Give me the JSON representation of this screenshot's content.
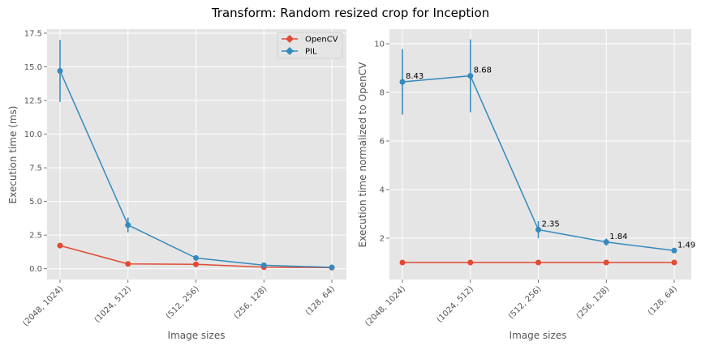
{
  "title": "Transform: Random resized crop for Inception",
  "colors": {
    "opencv": "#E24A33",
    "pil": "#348ABD",
    "axes_bg": "#E5E5E5",
    "grid": "#FFFFFF",
    "tick_text": "#555555"
  },
  "chart_data": [
    {
      "type": "line",
      "xlabel": "Image sizes",
      "ylabel": "Execution time (ms)",
      "categories": [
        "(2048, 1024)",
        "(1024, 512)",
        "(512, 256)",
        "(256, 128)",
        "(128, 64)"
      ],
      "ylim": [
        -0.8,
        17.8
      ],
      "yticks": [
        0.0,
        2.5,
        5.0,
        7.5,
        10.0,
        12.5,
        15.0,
        17.5
      ],
      "ytick_labels": [
        "0.0",
        "2.5",
        "5.0",
        "7.5",
        "10.0",
        "12.5",
        "15.0",
        "17.5"
      ],
      "grid": true,
      "legend": "top-right",
      "series": [
        {
          "name": "OpenCV",
          "color": "#E24A33",
          "values": [
            1.72,
            0.36,
            0.33,
            0.12,
            0.08
          ],
          "errors": [
            0.05,
            0.04,
            0.03,
            0.02,
            0.01
          ]
        },
        {
          "name": "PIL",
          "color": "#348ABD",
          "values": [
            14.7,
            3.25,
            0.8,
            0.26,
            0.1
          ],
          "errors": [
            2.3,
            0.55,
            0.08,
            0.03,
            0.02
          ]
        }
      ]
    },
    {
      "type": "line",
      "xlabel": "Image sizes",
      "ylabel": "Execution time normalized to OpenCV",
      "categories": [
        "(2048, 1024)",
        "(1024, 512)",
        "(512, 256)",
        "(256, 128)",
        "(128, 64)"
      ],
      "ylim": [
        0.3,
        10.6
      ],
      "yticks": [
        2,
        4,
        6,
        8,
        10
      ],
      "ytick_labels": [
        "2",
        "4",
        "6",
        "8",
        "10"
      ],
      "grid": true,
      "series": [
        {
          "name": "OpenCV",
          "color": "#E24A33",
          "values": [
            1.0,
            1.0,
            1.0,
            1.0,
            1.0
          ],
          "errors": [
            0.02,
            0.12,
            0.02,
            0.02,
            0.02
          ]
        },
        {
          "name": "PIL",
          "color": "#348ABD",
          "values": [
            8.43,
            8.68,
            2.35,
            1.84,
            1.49
          ],
          "errors": [
            1.35,
            1.5,
            0.35,
            0.15,
            0.05
          ]
        }
      ],
      "annotations": [
        "8.43",
        "8.68",
        "2.35",
        "1.84",
        "1.49"
      ]
    }
  ]
}
